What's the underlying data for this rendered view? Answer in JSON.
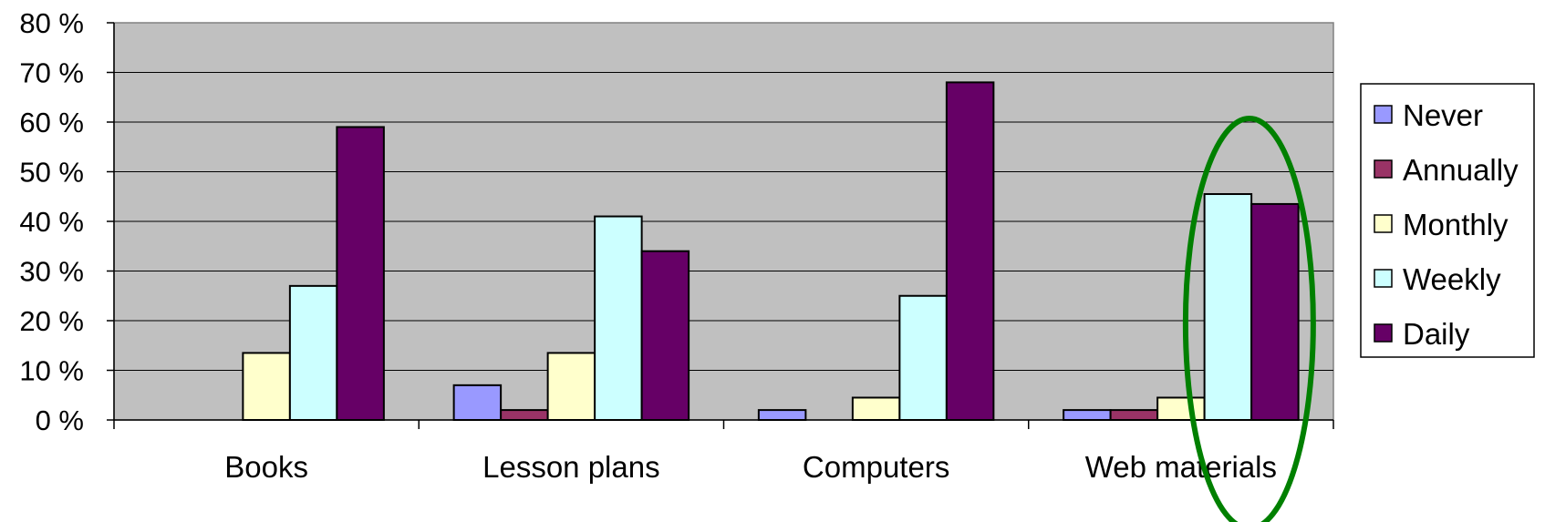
{
  "chart_data": {
    "type": "bar",
    "categories": [
      "Books",
      "Lesson plans",
      "Computers",
      "Web materials"
    ],
    "series": [
      {
        "name": "Never",
        "color": "#9999ff",
        "values": [
          0,
          7,
          2,
          2
        ]
      },
      {
        "name": "Annually",
        "color": "#993366",
        "values": [
          0,
          2,
          0,
          2
        ]
      },
      {
        "name": "Monthly",
        "color": "#ffffcc",
        "values": [
          13.5,
          13.5,
          4.5,
          4.5
        ]
      },
      {
        "name": "Weekly",
        "color": "#ccffff",
        "values": [
          27,
          41,
          25,
          45.5
        ]
      },
      {
        "name": "Daily",
        "color": "#660066",
        "values": [
          59,
          34,
          68,
          43.5
        ]
      }
    ],
    "yticks": [
      "0 %",
      "10 %",
      "20 %",
      "30 %",
      "40 %",
      "50 %",
      "60 %",
      "70 %",
      "80 %"
    ],
    "ylim": [
      0,
      80
    ],
    "grid": true,
    "legend_position": "right",
    "plot_background": "#c0c0c0",
    "annotation": {
      "shape": "ellipse",
      "color": "#008000",
      "target_category": "Web materials"
    }
  }
}
